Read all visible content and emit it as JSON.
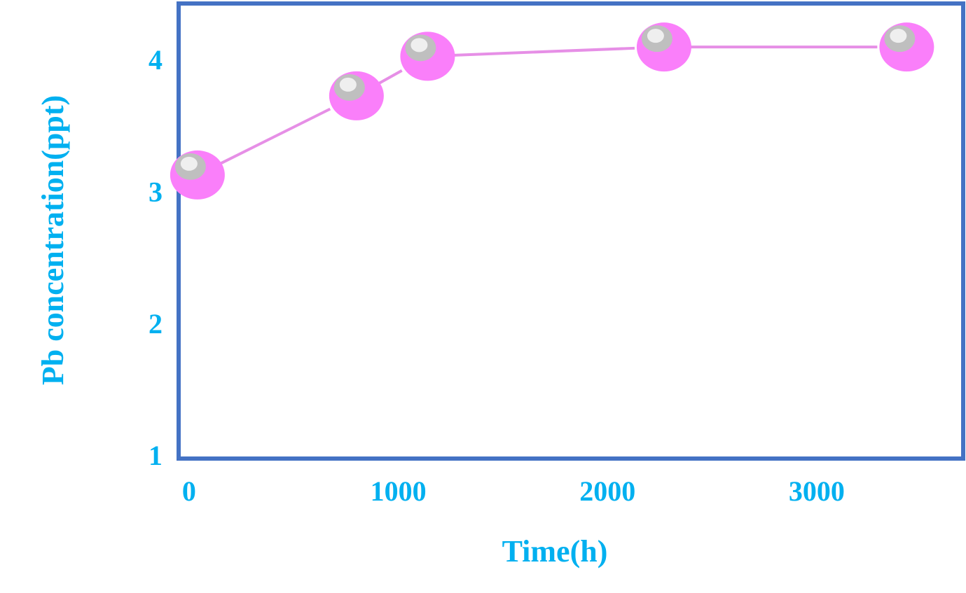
{
  "chart_data": {
    "type": "line",
    "title": "",
    "xlabel": "Time(h)",
    "ylabel": "Pb concentration(ppt)",
    "xlim": [
      -50,
      3700
    ],
    "ylim": [
      1,
      4.45
    ],
    "x_ticks": [
      "0",
      "1000",
      "2000",
      "3000"
    ],
    "y_ticks": [
      "1",
      "2",
      "3",
      "4"
    ],
    "grid": false,
    "legend": "none",
    "series": [
      {
        "x": [
          40,
          800,
          1140,
          2270,
          3430
        ],
        "y": [
          3.15,
          3.75,
          4.05,
          4.12,
          4.12
        ]
      }
    ],
    "colors": {
      "frame": "#4472C4",
      "text": "#00B0F0",
      "line": "#E68FE6",
      "marker": "#FA7FFA",
      "marker_highlight": "#BFBFBF",
      "marker_shine": "#EFEFEF"
    }
  }
}
